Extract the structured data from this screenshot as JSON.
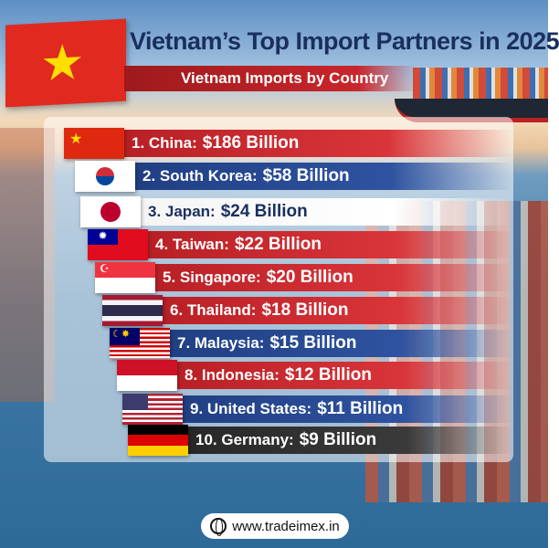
{
  "header": {
    "title": "Vietnam’s Top Import Partners in 2025",
    "subtitle": "Vietnam Imports by Country"
  },
  "rows": [
    {
      "label": "1. China:",
      "value": "$186 Billion",
      "style": "red",
      "flag": "china"
    },
    {
      "label": "2. South Korea:",
      "value": "$58 Billion",
      "style": "blue",
      "flag": "south-korea"
    },
    {
      "label": "3. Japan:",
      "value": "$24 Billion",
      "style": "white",
      "flag": "japan"
    },
    {
      "label": "4. Taiwan:",
      "value": "$22 Billion",
      "style": "red",
      "flag": "taiwan"
    },
    {
      "label": "5. Singapore:",
      "value": "$20 Billion",
      "style": "red",
      "flag": "singapore"
    },
    {
      "label": "6. Thailand:",
      "value": "$18 Billion",
      "style": "red",
      "flag": "thailand"
    },
    {
      "label": "7. Malaysia:",
      "value": "$15 Billion",
      "style": "blue",
      "flag": "malaysia"
    },
    {
      "label": "8. Indonesia:",
      "value": "$12 Billion",
      "style": "red",
      "flag": "indonesia"
    },
    {
      "label": "9. United States:",
      "value": "$11 Billion",
      "style": "blue",
      "flag": "united-states"
    },
    {
      "label": "10. Germany:",
      "value": "$9 Billion",
      "style": "dark",
      "flag": "germany"
    }
  ],
  "footer": {
    "website": "www.tradeimex.in",
    "icon": "globe-icon"
  },
  "colors": {
    "red": "#c8262b",
    "blue": "#2a4a8f",
    "title": "#1a2f5e"
  }
}
